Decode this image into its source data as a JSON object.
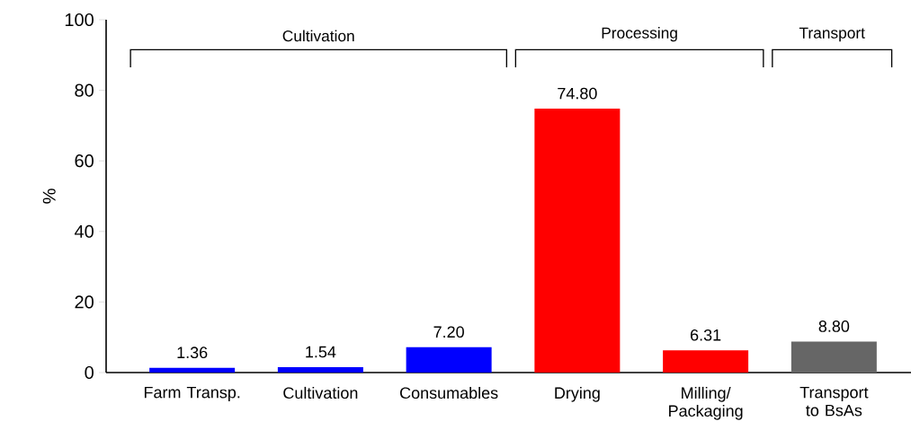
{
  "chart_data": {
    "type": "bar",
    "ylabel": "%",
    "categories": [
      "Farm Transp.",
      "Cultivation",
      "Consumables",
      "Drying",
      "Milling/ Packaging",
      "Transport to BsAs"
    ],
    "values": [
      1.36,
      1.54,
      7.2,
      74.8,
      6.31,
      8.8
    ],
    "value_labels": [
      "1.36",
      "1.54",
      "7.20",
      "74.80",
      "6.31",
      "8.80"
    ],
    "colors": [
      "#0000ff",
      "#0000ff",
      "#0000ff",
      "#ff0000",
      "#ff0000",
      "#666666"
    ],
    "ylim": [
      0,
      100
    ],
    "yticks": [
      0,
      20,
      40,
      60,
      80,
      100
    ],
    "grid": false,
    "annotations": [
      "Cultivation",
      "Processing",
      "Transport"
    ]
  }
}
